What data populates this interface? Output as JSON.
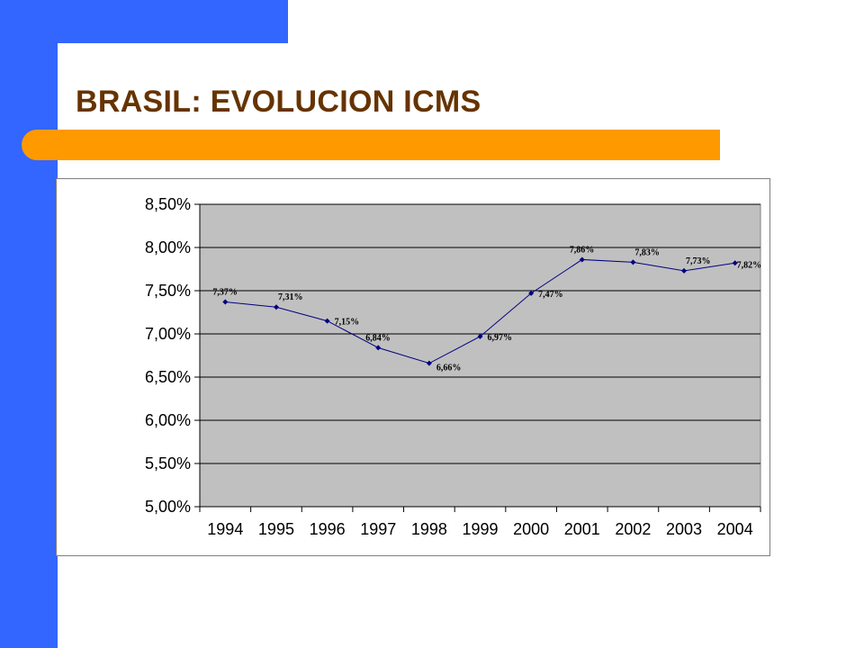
{
  "slide": {
    "title": "BRASIL: EVOLUCION ICMS"
  },
  "colors": {
    "blue": "#3366ff",
    "orange": "#ff9900",
    "title": "#663300",
    "plot_area": "#c0c0c0",
    "line": "#000080"
  },
  "chart_data": {
    "type": "line",
    "title": "",
    "xlabel": "",
    "ylabel": "",
    "x": [
      "1994",
      "1995",
      "1996",
      "1997",
      "1998",
      "1999",
      "2000",
      "2001",
      "2002",
      "2003",
      "2004"
    ],
    "series": [
      {
        "values": [
          7.37,
          7.31,
          7.15,
          6.84,
          6.66,
          6.97,
          7.47,
          7.86,
          7.83,
          7.73,
          7.82
        ],
        "labels": [
          "7,37%",
          "7,31%",
          "7,15%",
          "6,84%",
          "6,66%",
          "6,97%",
          "7,47%",
          "7,86%",
          "7,83%",
          "7,73%",
          "7,82%"
        ]
      }
    ],
    "ylim": [
      5.0,
      8.5
    ],
    "y_ticks": [
      5.0,
      5.5,
      6.0,
      6.5,
      7.0,
      7.5,
      8.0,
      8.5
    ],
    "y_tick_labels": [
      "5,00%",
      "5,50%",
      "6,00%",
      "6,50%",
      "7,00%",
      "7,50%",
      "8,00%",
      "8,50%"
    ],
    "grid": true,
    "legend": "none"
  }
}
